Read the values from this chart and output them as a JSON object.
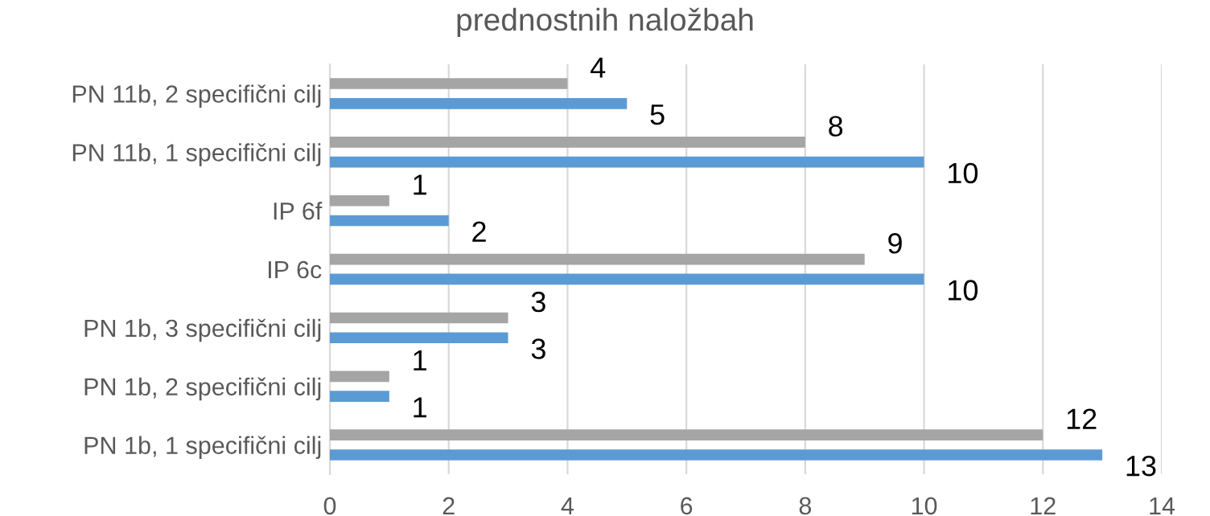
{
  "chart_data": {
    "type": "bar",
    "orientation": "horizontal",
    "title": "prednostnih naložbah",
    "categories": [
      "PN 11b, 2 specifični cilj",
      "PN 11b, 1 specifični cilj",
      "IP 6f",
      "IP 6c",
      "PN 1b, 3 specifični cilj",
      "PN 1b, 2 specifični cilj",
      "PN 1b, 1 specifični cilj"
    ],
    "series": [
      {
        "color": "#a5a5a5",
        "values": [
          4,
          8,
          1,
          9,
          3,
          1,
          12
        ]
      },
      {
        "color": "#5b9bd5",
        "values": [
          5,
          10,
          2,
          10,
          3,
          1,
          13
        ]
      }
    ],
    "xlim": [
      0,
      14
    ],
    "xticks": [
      0,
      2,
      4,
      6,
      8,
      10,
      12,
      14
    ],
    "grid": "x",
    "data_labels": true
  }
}
